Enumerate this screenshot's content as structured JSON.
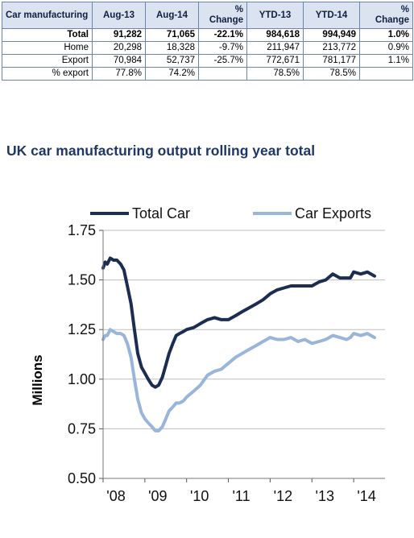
{
  "table": {
    "header": {
      "label": "Car manufacturing",
      "aug13": "Aug-13",
      "aug14": "Aug-14",
      "change1_a": "%",
      "change1_b": "Change",
      "ytd13": "YTD-13",
      "ytd14": "YTD-14",
      "change2_a": "%",
      "change2_b": "Change"
    },
    "rows": [
      {
        "label": "Total",
        "aug13": "91,282",
        "aug14": "71,065",
        "change1": "-22.1%",
        "ytd13": "984,618",
        "ytd14": "994,949",
        "change2": "1.0%"
      },
      {
        "label": "Home",
        "aug13": "20,298",
        "aug14": "18,328",
        "change1": "-9.7%",
        "ytd13": "211,947",
        "ytd14": "213,772",
        "change2": "0.9%"
      },
      {
        "label": "Export",
        "aug13": "70,984",
        "aug14": "52,737",
        "change1": "-25.7%",
        "ytd13": "772,671",
        "ytd14": "781,177",
        "change2": "1.1%"
      },
      {
        "label": "% export",
        "aug13": "77.8%",
        "aug14": "74.2%",
        "change1": "",
        "ytd13": "78.5%",
        "ytd14": "78.5%",
        "change2": ""
      }
    ]
  },
  "chart_data": {
    "type": "line",
    "title": "UK car manufacturing output rolling year total",
    "ylabel": "Millions",
    "xlabel": "",
    "ylim": [
      0.5,
      1.75
    ],
    "yticks": [
      "0.50",
      "0.75",
      "1.00",
      "1.25",
      "1.50",
      "1.75"
    ],
    "xticks": [
      "'08",
      "'09",
      "'10",
      "'11",
      "'12",
      "'13",
      "'14"
    ],
    "xlim": [
      2008.0,
      2014.75
    ],
    "grid": "horizontal",
    "legend": "top",
    "series": [
      {
        "name": "Total Car",
        "color": "#1c2d52",
        "points": [
          [
            2008.0,
            1.56
          ],
          [
            2008.05,
            1.59
          ],
          [
            2008.1,
            1.58
          ],
          [
            2008.17,
            1.61
          ],
          [
            2008.25,
            1.6
          ],
          [
            2008.33,
            1.6
          ],
          [
            2008.42,
            1.58
          ],
          [
            2008.5,
            1.55
          ],
          [
            2008.58,
            1.47
          ],
          [
            2008.67,
            1.38
          ],
          [
            2008.75,
            1.25
          ],
          [
            2008.83,
            1.13
          ],
          [
            2008.92,
            1.06
          ],
          [
            2009.0,
            1.03
          ],
          [
            2009.08,
            1.0
          ],
          [
            2009.17,
            0.97
          ],
          [
            2009.25,
            0.96
          ],
          [
            2009.33,
            0.97
          ],
          [
            2009.42,
            1.01
          ],
          [
            2009.5,
            1.07
          ],
          [
            2009.58,
            1.13
          ],
          [
            2009.67,
            1.18
          ],
          [
            2009.75,
            1.22
          ],
          [
            2009.83,
            1.23
          ],
          [
            2009.92,
            1.24
          ],
          [
            2010.0,
            1.25
          ],
          [
            2010.17,
            1.26
          ],
          [
            2010.33,
            1.28
          ],
          [
            2010.5,
            1.3
          ],
          [
            2010.67,
            1.31
          ],
          [
            2010.83,
            1.3
          ],
          [
            2011.0,
            1.3
          ],
          [
            2011.17,
            1.32
          ],
          [
            2011.33,
            1.34
          ],
          [
            2011.5,
            1.36
          ],
          [
            2011.67,
            1.38
          ],
          [
            2011.83,
            1.4
          ],
          [
            2012.0,
            1.43
          ],
          [
            2012.17,
            1.45
          ],
          [
            2012.33,
            1.46
          ],
          [
            2012.5,
            1.47
          ],
          [
            2012.67,
            1.47
          ],
          [
            2012.83,
            1.47
          ],
          [
            2013.0,
            1.47
          ],
          [
            2013.17,
            1.49
          ],
          [
            2013.33,
            1.5
          ],
          [
            2013.5,
            1.53
          ],
          [
            2013.67,
            1.51
          ],
          [
            2013.83,
            1.51
          ],
          [
            2013.92,
            1.51
          ],
          [
            2014.0,
            1.54
          ],
          [
            2014.17,
            1.53
          ],
          [
            2014.33,
            1.54
          ],
          [
            2014.5,
            1.52
          ]
        ]
      },
      {
        "name": "Car Exports",
        "color": "#9ab5da",
        "points": [
          [
            2008.0,
            1.2
          ],
          [
            2008.05,
            1.22
          ],
          [
            2008.1,
            1.22
          ],
          [
            2008.17,
            1.25
          ],
          [
            2008.25,
            1.24
          ],
          [
            2008.33,
            1.23
          ],
          [
            2008.42,
            1.23
          ],
          [
            2008.5,
            1.22
          ],
          [
            2008.58,
            1.18
          ],
          [
            2008.67,
            1.11
          ],
          [
            2008.75,
            1.0
          ],
          [
            2008.83,
            0.9
          ],
          [
            2008.92,
            0.83
          ],
          [
            2009.0,
            0.8
          ],
          [
            2009.08,
            0.78
          ],
          [
            2009.17,
            0.76
          ],
          [
            2009.25,
            0.74
          ],
          [
            2009.33,
            0.74
          ],
          [
            2009.42,
            0.76
          ],
          [
            2009.5,
            0.8
          ],
          [
            2009.58,
            0.84
          ],
          [
            2009.67,
            0.86
          ],
          [
            2009.75,
            0.88
          ],
          [
            2009.83,
            0.88
          ],
          [
            2009.92,
            0.89
          ],
          [
            2010.0,
            0.91
          ],
          [
            2010.17,
            0.94
          ],
          [
            2010.33,
            0.97
          ],
          [
            2010.5,
            1.02
          ],
          [
            2010.67,
            1.04
          ],
          [
            2010.83,
            1.05
          ],
          [
            2011.0,
            1.08
          ],
          [
            2011.17,
            1.11
          ],
          [
            2011.33,
            1.13
          ],
          [
            2011.5,
            1.15
          ],
          [
            2011.67,
            1.17
          ],
          [
            2011.83,
            1.19
          ],
          [
            2012.0,
            1.21
          ],
          [
            2012.17,
            1.2
          ],
          [
            2012.33,
            1.2
          ],
          [
            2012.5,
            1.21
          ],
          [
            2012.67,
            1.19
          ],
          [
            2012.83,
            1.2
          ],
          [
            2013.0,
            1.18
          ],
          [
            2013.17,
            1.19
          ],
          [
            2013.33,
            1.2
          ],
          [
            2013.5,
            1.22
          ],
          [
            2013.67,
            1.21
          ],
          [
            2013.83,
            1.2
          ],
          [
            2013.92,
            1.21
          ],
          [
            2014.0,
            1.23
          ],
          [
            2014.17,
            1.22
          ],
          [
            2014.33,
            1.23
          ],
          [
            2014.5,
            1.21
          ]
        ]
      }
    ]
  }
}
